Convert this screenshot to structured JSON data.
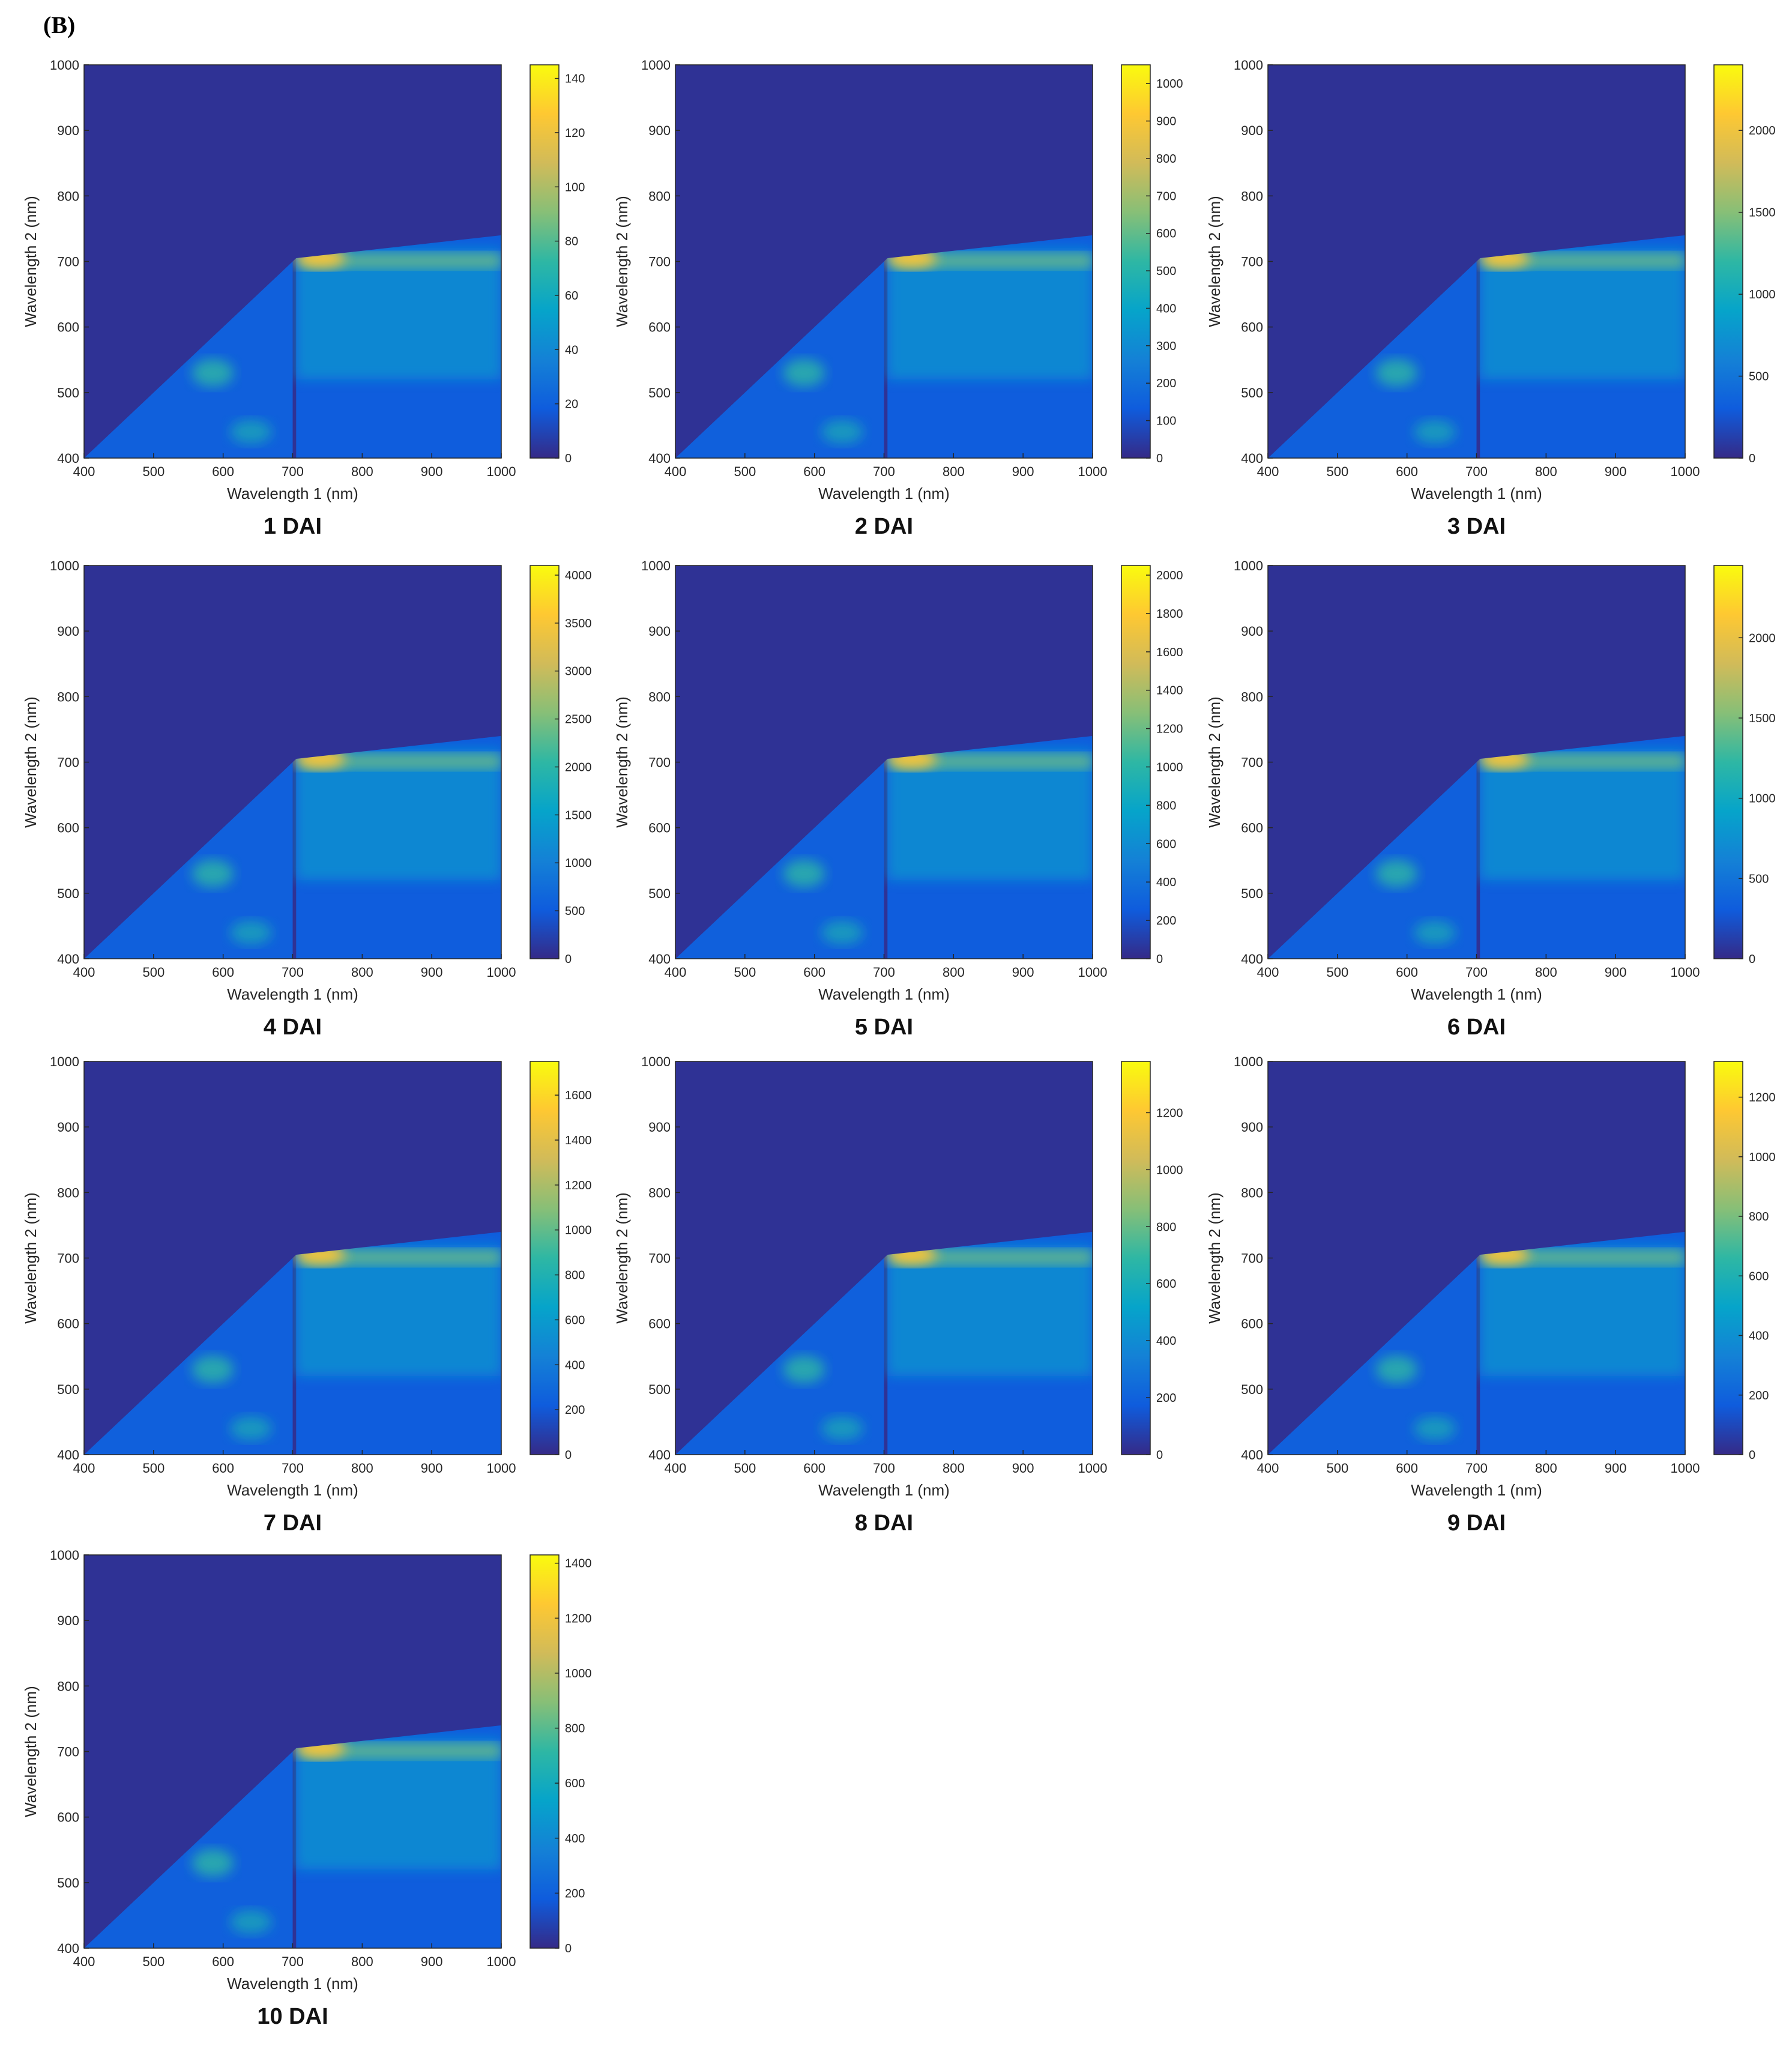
{
  "figure": {
    "panel_label": "(B)",
    "xlabel": "Wavelength 1 (nm)",
    "ylabel": "Wavelength 2 (nm)",
    "axis_ticks": [
      "400",
      "500",
      "600",
      "700",
      "800",
      "900",
      "1000"
    ]
  },
  "colors": {
    "parula": [
      "#352a87",
      "#0f5cdd",
      "#1481d6",
      "#06a4ca",
      "#2eb7a4",
      "#87bf77",
      "#d1bb59",
      "#fec832",
      "#f9fb0e"
    ]
  },
  "chart_data": [
    {
      "type": "heatmap",
      "title": "1 DAI",
      "xlabel": "Wavelength 1 (nm)",
      "ylabel": "Wavelength 2 (nm)",
      "xlim": [
        400,
        1000
      ],
      "ylim": [
        400,
        1000
      ],
      "cbar_max": 145,
      "cbar_ticks": [
        0,
        20,
        40,
        60,
        80,
        100,
        120,
        140
      ]
    },
    {
      "type": "heatmap",
      "title": "2 DAI",
      "xlabel": "Wavelength 1 (nm)",
      "ylabel": "Wavelength 2 (nm)",
      "xlim": [
        400,
        1000
      ],
      "ylim": [
        400,
        1000
      ],
      "cbar_max": 1050,
      "cbar_ticks": [
        0,
        100,
        200,
        300,
        400,
        500,
        600,
        700,
        800,
        900,
        1000
      ]
    },
    {
      "type": "heatmap",
      "title": "3 DAI",
      "xlabel": "Wavelength 1 (nm)",
      "ylabel": "Wavelength 2 (nm)",
      "xlim": [
        400,
        1000
      ],
      "ylim": [
        400,
        1000
      ],
      "cbar_max": 2400,
      "cbar_ticks": [
        0,
        500,
        1000,
        1500,
        2000
      ]
    },
    {
      "type": "heatmap",
      "title": "4 DAI",
      "xlabel": "Wavelength 1 (nm)",
      "ylabel": "Wavelength 2 (nm)",
      "xlim": [
        400,
        1000
      ],
      "ylim": [
        400,
        1000
      ],
      "cbar_max": 4100,
      "cbar_ticks": [
        0,
        500,
        1000,
        1500,
        2000,
        2500,
        3000,
        3500,
        4000
      ]
    },
    {
      "type": "heatmap",
      "title": "5 DAI",
      "xlabel": "Wavelength 1 (nm)",
      "ylabel": "Wavelength 2 (nm)",
      "xlim": [
        400,
        1000
      ],
      "ylim": [
        400,
        1000
      ],
      "cbar_max": 2050,
      "cbar_ticks": [
        0,
        200,
        400,
        600,
        800,
        1000,
        1200,
        1400,
        1600,
        1800,
        2000
      ]
    },
    {
      "type": "heatmap",
      "title": "6 DAI",
      "xlabel": "Wavelength 1 (nm)",
      "ylabel": "Wavelength 2 (nm)",
      "xlim": [
        400,
        1000
      ],
      "ylim": [
        400,
        1000
      ],
      "cbar_max": 2450,
      "cbar_ticks": [
        0,
        500,
        1000,
        1500,
        2000
      ]
    },
    {
      "type": "heatmap",
      "title": "7 DAI",
      "xlabel": "Wavelength 1 (nm)",
      "ylabel": "Wavelength 2 (nm)",
      "xlim": [
        400,
        1000
      ],
      "ylim": [
        400,
        1000
      ],
      "cbar_max": 1750,
      "cbar_ticks": [
        0,
        200,
        400,
        600,
        800,
        1000,
        1200,
        1400,
        1600
      ]
    },
    {
      "type": "heatmap",
      "title": "8 DAI",
      "xlabel": "Wavelength 1 (nm)",
      "ylabel": "Wavelength 2 (nm)",
      "xlim": [
        400,
        1000
      ],
      "ylim": [
        400,
        1000
      ],
      "cbar_max": 1380,
      "cbar_ticks": [
        0,
        200,
        400,
        600,
        800,
        1000,
        1200
      ]
    },
    {
      "type": "heatmap",
      "title": "9 DAI",
      "xlabel": "Wavelength 1 (nm)",
      "ylabel": "Wavelength 2 (nm)",
      "xlim": [
        400,
        1000
      ],
      "ylim": [
        400,
        1000
      ],
      "cbar_max": 1320,
      "cbar_ticks": [
        0,
        200,
        400,
        600,
        800,
        1000,
        1200
      ]
    },
    {
      "type": "heatmap",
      "title": "10 DAI",
      "xlabel": "Wavelength 1 (nm)",
      "ylabel": "Wavelength 2 (nm)",
      "xlim": [
        400,
        1000
      ],
      "ylim": [
        400,
        1000
      ],
      "cbar_max": 1430,
      "cbar_ticks": [
        0,
        200,
        400,
        600,
        800,
        1000,
        1200,
        1400
      ]
    }
  ]
}
